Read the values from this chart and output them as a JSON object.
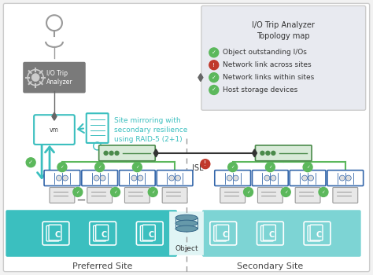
{
  "bg_color": "#f2f2f2",
  "white": "#ffffff",
  "teal": "#3bbfbf",
  "teal_light": "#7dd4d4",
  "teal_dark": "#2aa0a0",
  "green": "#5cb85c",
  "red": "#c0392b",
  "gray_dark": "#666666",
  "gray_med": "#999999",
  "gray_light": "#cccccc",
  "blue_border": "#3366aa",
  "analyzer_bg": "#7a7a7a",
  "legend_bg": "#e8eaf0",
  "preferred_label": "Preferred Site",
  "secondary_label": "Secondary Site",
  "isl_label": "ISL",
  "object_label": "Object",
  "mirroring_text": "Site mirroring with\nsecondary resilience\nusing RAID-5 (2+1)",
  "analyzer_label": "I/O Trip\nAnalyzer",
  "legend_title": "I/O Trip Analyzer\nTopology map",
  "legend_items": [
    {
      "icon": "green",
      "text": "Object outstanding I/Os"
    },
    {
      "icon": "red",
      "text": "Network link across sites"
    },
    {
      "icon": "green",
      "text": "Network links within sites"
    },
    {
      "icon": "green",
      "text": "Host storage devices"
    }
  ]
}
